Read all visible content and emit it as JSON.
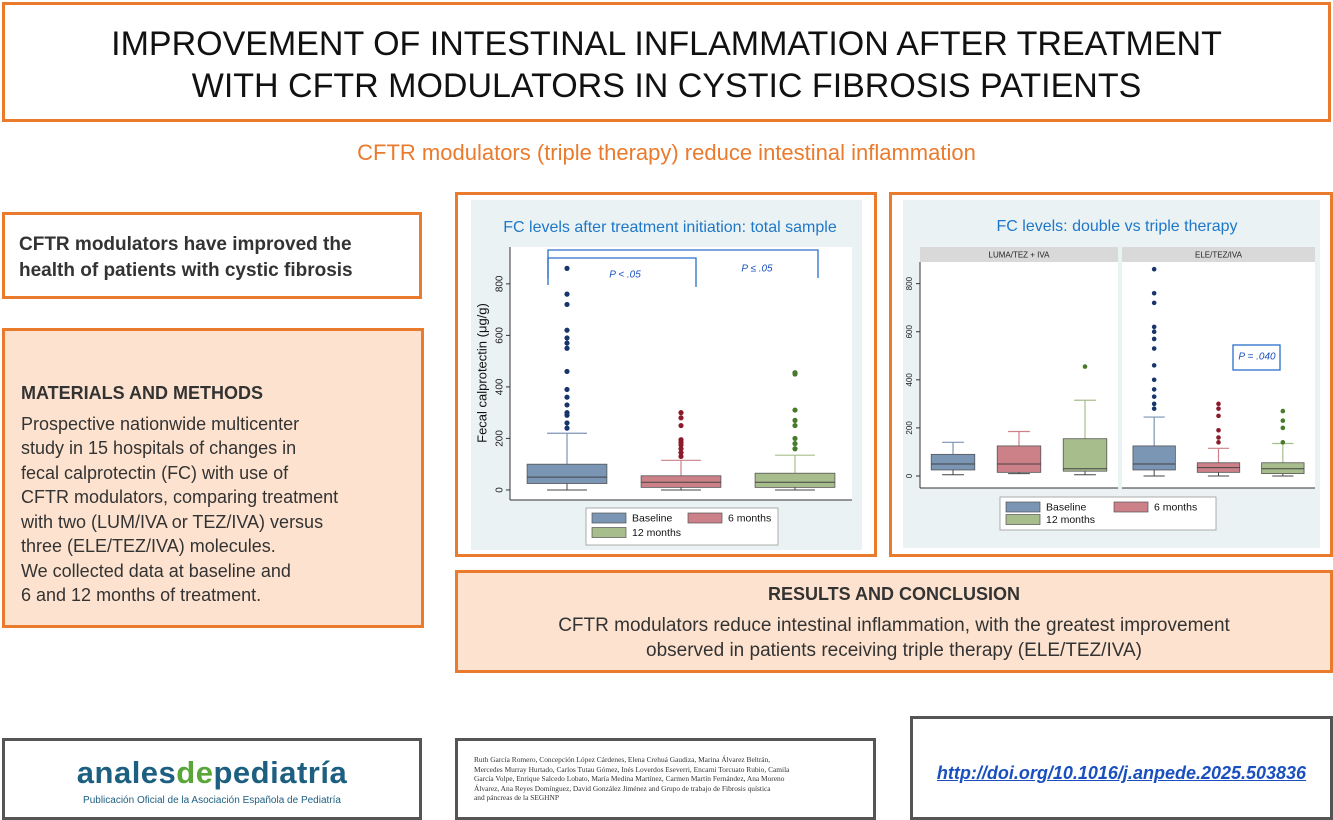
{
  "header": {
    "title_lines": [
      "IMPROVEMENT OF INTESTINAL INFLAMMATION AFTER TREATMENT",
      "WITH CFTR MODULATORS IN CYSTIC FIBROSIS PATIENTS"
    ],
    "subtitle": "CFTR modulators (triple therapy) reduce intestinal inflammation"
  },
  "key_point": [
    "CFTR modulators have improved the",
    "health of patients with cystic fibrosis"
  ],
  "methods": {
    "heading": "MATERIALS AND METHODS",
    "lines": [
      "Prospective nationwide multicenter",
      "study in 15 hospitals of changes in",
      "fecal calprotectin (FC) with use of",
      "CFTR modulators, comparing treatment",
      "with two (LUM/IVA or TEZ/IVA) versus",
      "three (ELE/TEZ/IVA) molecules.",
      "We collected data at baseline and",
      "6 and 12 months of treatment."
    ]
  },
  "chart_data": [
    {
      "type": "box",
      "title": "FC levels after treatment initiation: total sample",
      "y_label": "Fecal calprotectin (μg/g)",
      "ylim": [
        -39,
        943
      ],
      "yticks": [
        0,
        200,
        400,
        600,
        800
      ],
      "series": [
        {
          "name": "Baseline",
          "color": "#7b95b5",
          "outlier_color": "#17346b"
        },
        {
          "name": "6 months",
          "color": "#cc8088",
          "outlier_color": "#8b1a2b"
        },
        {
          "name": "12 months",
          "color": "#a8bd8c",
          "outlier_color": "#477a2a"
        }
      ],
      "boxes": [
        {
          "whisker_low": 0,
          "q1": 25,
          "median": 50,
          "q3": 100,
          "whisker_high": 220,
          "outliers": [
            240,
            260,
            290,
            300,
            330,
            360,
            390,
            460,
            550,
            570,
            590,
            620,
            720,
            760,
            860
          ]
        },
        {
          "whisker_low": 0,
          "q1": 10,
          "median": 30,
          "q3": 55,
          "whisker_high": 115,
          "outliers": [
            130,
            145,
            160,
            175,
            185,
            195,
            250,
            280,
            300
          ]
        },
        {
          "whisker_low": 0,
          "q1": 10,
          "median": 30,
          "q3": 65,
          "whisker_high": 135,
          "outliers": [
            160,
            180,
            200,
            250,
            270,
            310,
            450,
            455
          ]
        }
      ],
      "annotations": [
        "P < .05",
        "P ≤ .05"
      ]
    },
    {
      "type": "box",
      "title": "FC levels: double vs triple therapy",
      "ylim": [
        -50,
        890
      ],
      "yticks": [
        0,
        200,
        400,
        600,
        800
      ],
      "series": [
        {
          "name": "Baseline",
          "color": "#7b95b5",
          "outlier_color": "#17346b"
        },
        {
          "name": "6 months",
          "color": "#cc8088",
          "outlier_color": "#8b1a2b"
        },
        {
          "name": "12 months",
          "color": "#a8bd8c",
          "outlier_color": "#477a2a"
        }
      ],
      "panels": [
        {
          "title": "LUMA/TEZ + IVA",
          "boxes": [
            {
              "whisker_low": 5,
              "q1": 25,
              "median": 50,
              "q3": 90,
              "whisker_high": 140,
              "outliers": []
            },
            {
              "whisker_low": 10,
              "q1": 15,
              "median": 50,
              "q3": 125,
              "whisker_high": 185,
              "outliers": []
            },
            {
              "whisker_low": 5,
              "q1": 20,
              "median": 30,
              "q3": 155,
              "whisker_high": 315,
              "outliers": [
                455
              ]
            }
          ]
        },
        {
          "title": "ELE/TEZ/IVA",
          "boxes": [
            {
              "whisker_low": 0,
              "q1": 25,
              "median": 50,
              "q3": 125,
              "whisker_high": 245,
              "outliers": [
                280,
                300,
                330,
                360,
                400,
                460,
                530,
                570,
                600,
                620,
                720,
                760,
                860
              ]
            },
            {
              "whisker_low": 0,
              "q1": 15,
              "median": 35,
              "q3": 55,
              "whisker_high": 115,
              "outliers": [
                140,
                160,
                190,
                250,
                280,
                300
              ]
            },
            {
              "whisker_low": 0,
              "q1": 10,
              "median": 30,
              "q3": 55,
              "whisker_high": 135,
              "outliers": [
                140,
                200,
                230,
                270
              ]
            }
          ]
        }
      ],
      "annotations": [
        "P = .040"
      ]
    }
  ],
  "results": {
    "heading": "RESULTS AND CONCLUSION",
    "lines": [
      "CFTR modulators reduce intestinal inflammation, with the greatest improvement",
      "observed in patients receiving triple therapy (ELE/TEZ/IVA)"
    ]
  },
  "footer": {
    "journal": {
      "parts": [
        "anales",
        "de",
        "pediatría"
      ],
      "tagline": "Publicación Oficial de la Asociación Española de Pediatría"
    },
    "authors": [
      "Ruth García Romero, Concepción López Cárdenes, Elena Crehuá Gaudiza, Marina Álvarez Beltrán,",
      "Mercedes Murray Hurtado, Carlos Tutau Gómez, Inés Loverdos Eseverri, Encarni Torcuato Rubio, Camila",
      "García Volpe, Enrique Salcedo Lobato, María Medina Martínez, Carmen Martín Fernández, Ana Moreno",
      "Álvarez, Ana Reyes Domínguez, David González Jiménez and Grupo de trabajo de Fibrosis quística",
      "and páncreas de la SEGHNP"
    ],
    "doi": "http://doi.org/10.1016/j.anpede.2025.503836"
  }
}
